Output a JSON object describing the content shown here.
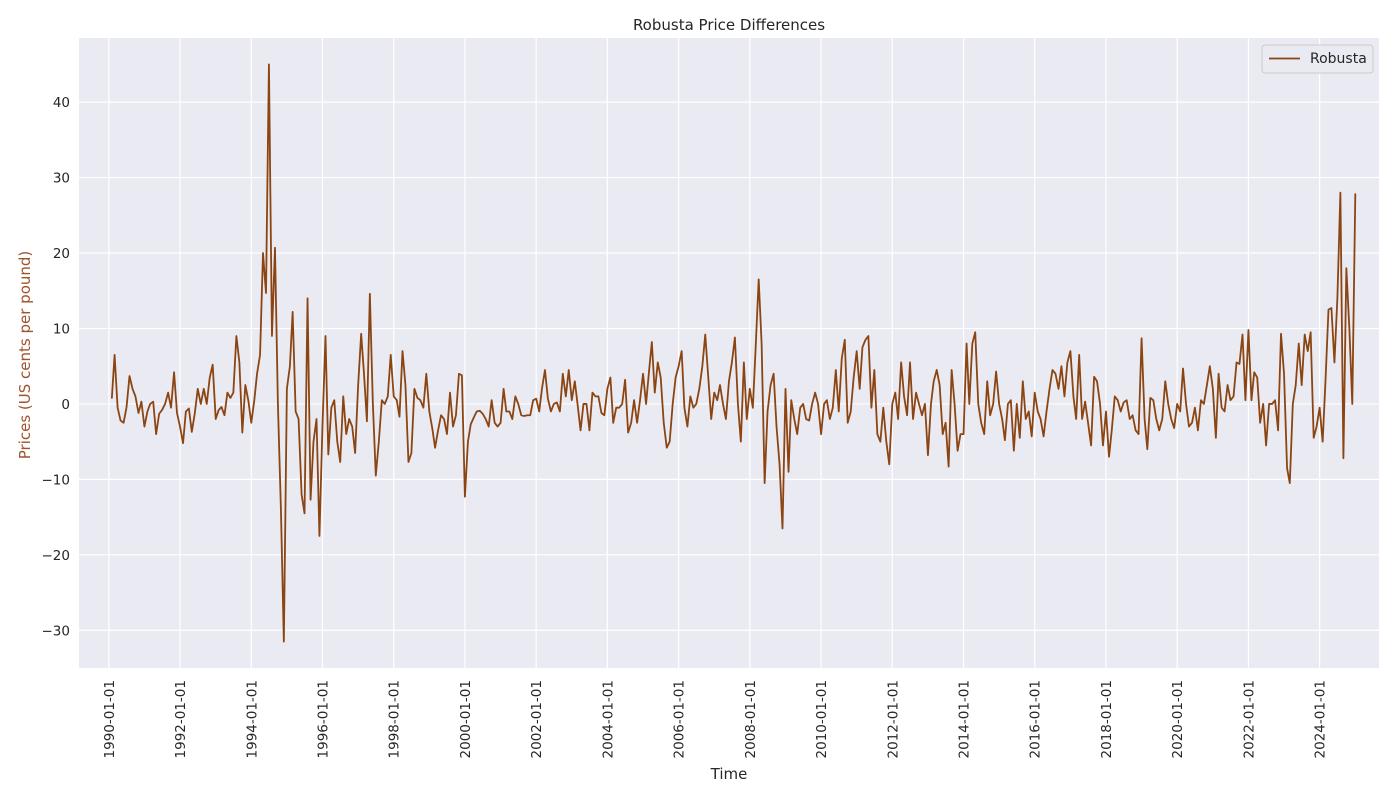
{
  "chart_data": {
    "type": "line",
    "title": "Robusta Price Differences",
    "xlabel": "Time",
    "ylabel": "Prices (US cents per pound)",
    "ylim": [
      -35,
      48.5
    ],
    "xlim": [
      "1989-03-01",
      "2025-09-01"
    ],
    "x_tick_labels": [
      "1990-01-01",
      "1992-01-01",
      "1994-01-01",
      "1996-01-01",
      "1998-01-01",
      "2000-01-01",
      "2002-01-01",
      "2004-01-01",
      "2006-01-01",
      "2008-01-01",
      "2010-01-01",
      "2012-01-01",
      "2014-01-01",
      "2016-01-01",
      "2018-01-01",
      "2020-01-01",
      "2022-01-01",
      "2024-01-01"
    ],
    "y_ticks": [
      -30,
      -20,
      -10,
      0,
      10,
      20,
      30,
      40
    ],
    "y_tick_labels": [
      "−30",
      "−20",
      "−10",
      "0",
      "10",
      "20",
      "30",
      "40"
    ],
    "grid": true,
    "legend_position": "top-right",
    "colors": {
      "series": "#8B4513",
      "ylabel": "#A0522D",
      "background": "#EAEAF2",
      "grid": "#FFFFFF"
    },
    "series": [
      {
        "name": "Robusta",
        "start": "1990-02-01",
        "frequency": "monthly",
        "values": [
          0.8,
          6.5,
          -0.5,
          -2.2,
          -2.5,
          -0.5,
          3.7,
          2.0,
          1.0,
          -1.2,
          0.3,
          -3.0,
          -1.0,
          0.0,
          0.3,
          -4.0,
          -1.3,
          -0.8,
          0.0,
          1.5,
          -0.5,
          4.2,
          -1.2,
          -3.0,
          -5.2,
          -1.0,
          -0.6,
          -3.7,
          -1.2,
          2.0,
          0.0,
          2.0,
          0.0,
          3.5,
          5.2,
          -2.0,
          -0.8,
          -0.4,
          -1.5,
          1.5,
          0.8,
          1.5,
          9.0,
          5.5,
          -3.8,
          2.5,
          0.5,
          -2.5,
          0.5,
          4.0,
          6.5,
          20.0,
          14.7,
          45.0,
          9.0,
          20.7,
          0.0,
          -14.0,
          -31.5,
          2.0,
          5.0,
          12.2,
          -1.0,
          -2.0,
          -12.0,
          -14.5,
          14.0,
          -12.7,
          -5.0,
          -2.0,
          -17.5,
          -3.0,
          9.0,
          -6.7,
          -0.5,
          0.5,
          -5.0,
          -7.7,
          1.0,
          -4.0,
          -2.0,
          -3.0,
          -6.5,
          2.5,
          9.3,
          4.2,
          -2.3,
          14.6,
          0.0,
          -9.5,
          -5.0,
          0.5,
          0.0,
          1.0,
          6.5,
          1.0,
          0.5,
          -1.7,
          7.0,
          2.5,
          -7.7,
          -6.5,
          2.0,
          0.8,
          0.5,
          -0.5,
          4.0,
          -1.0,
          -3.3,
          -5.8,
          -3.5,
          -1.5,
          -2.0,
          -4.0,
          1.5,
          -3.0,
          -1.5,
          4.0,
          3.8,
          -12.3,
          -5.0,
          -2.7,
          -1.8,
          -1.0,
          -0.9,
          -1.3,
          -2.0,
          -3.0,
          0.5,
          -2.5,
          -3.0,
          -2.5,
          2.0,
          -1.0,
          -1.0,
          -2.0,
          1.0,
          0.0,
          -1.5,
          -1.6,
          -1.5,
          -1.5,
          0.5,
          0.7,
          -1.0,
          2.0,
          4.5,
          0.7,
          -1.0,
          0.0,
          0.2,
          -1.0,
          4.0,
          1.0,
          4.5,
          0.5,
          3.0,
          0.0,
          -3.5,
          0.0,
          0.0,
          -3.5,
          1.5,
          1.0,
          1.0,
          -1.2,
          -1.5,
          2.0,
          3.5,
          -2.5,
          -0.5,
          -0.5,
          0.0,
          3.2,
          -3.8,
          -2.5,
          0.5,
          -2.5,
          0.5,
          4.0,
          0.0,
          4.0,
          8.2,
          1.5,
          5.5,
          3.5,
          -2.5,
          -5.8,
          -5.0,
          0.0,
          3.5,
          5.0,
          7.0,
          -0.5,
          -3.0,
          1.0,
          -0.5,
          0.0,
          2.0,
          5.0,
          9.2,
          3.5,
          -2.0,
          1.5,
          0.5,
          2.5,
          0.0,
          -2.0,
          3.0,
          5.5,
          8.8,
          0.0,
          -5.0,
          5.5,
          -2.0,
          2.0,
          -0.5,
          7.5,
          16.5,
          8.0,
          -10.5,
          -1.0,
          2.5,
          4.0,
          -3.0,
          -8.0,
          -16.5,
          2.0,
          -9.0,
          0.5,
          -2.0,
          -4.0,
          -0.5,
          0.0,
          -2.0,
          -2.2,
          0.0,
          1.5,
          0.0,
          -4.0,
          0.0,
          0.5,
          -2.0,
          -0.5,
          4.5,
          -1.0,
          6.0,
          8.5,
          -2.5,
          -1.0,
          3.5,
          7.0,
          2.0,
          7.5,
          8.5,
          9.0,
          -0.5,
          4.5,
          -4.0,
          -5.0,
          -0.5,
          -5.0,
          -8.0,
          0.0,
          1.5,
          -2.0,
          5.5,
          1.0,
          -1.5,
          5.5,
          -2.0,
          1.5,
          0.0,
          -1.5,
          0.0,
          -6.8,
          0.0,
          3.0,
          4.5,
          2.5,
          -4.0,
          -2.5,
          -8.3,
          4.5,
          0.0,
          -6.2,
          -4.0,
          -4.0,
          8.0,
          0.0,
          8.0,
          9.5,
          0.0,
          -2.5,
          -4.0,
          3.0,
          -1.5,
          0.0,
          4.3,
          0.0,
          -2.0,
          -4.8,
          0.0,
          0.5,
          -6.2,
          0.0,
          -4.5,
          3.0,
          -2.0,
          -1.0,
          -4.3,
          1.5,
          -1.0,
          -2.0,
          -4.3,
          -1.0,
          2.0,
          4.5,
          4.0,
          2.0,
          5.0,
          1.0,
          5.5,
          7.0,
          1.0,
          -2.0,
          6.5,
          -2.0,
          0.3,
          -2.5,
          -5.5,
          3.6,
          3.0,
          0.0,
          -5.5,
          -1.0,
          -7.0,
          -3.5,
          1.0,
          0.5,
          -1.0,
          0.2,
          0.5,
          -2.0,
          -1.5,
          -3.5,
          -4.0,
          8.7,
          -2.0,
          -6.0,
          0.8,
          0.5,
          -2.0,
          -3.5,
          -2.0,
          3.0,
          0.0,
          -2.0,
          -3.2,
          0.0,
          -1.0,
          4.7,
          0.0,
          -3.0,
          -2.5,
          -0.5,
          -3.5,
          0.5,
          0.0,
          2.5,
          5.0,
          2.0,
          -4.5,
          4.0,
          -0.5,
          -1.0,
          2.5,
          0.5,
          1.0,
          5.5,
          5.3,
          9.2,
          0.5,
          9.8,
          0.5,
          4.2,
          3.5,
          -2.5,
          0.0,
          -5.5,
          0.0,
          0.0,
          0.5,
          -3.5,
          9.3,
          4.0,
          -8.5,
          -10.5,
          0.0,
          2.5,
          8.0,
          2.5,
          9.2,
          7.0,
          9.5,
          -4.5,
          -3.0,
          -0.5,
          -5.0,
          3.0,
          12.5,
          12.7,
          5.5,
          14.0,
          28.0,
          -7.2,
          18.0,
          10.0,
          0.0,
          27.8
        ]
      }
    ]
  }
}
